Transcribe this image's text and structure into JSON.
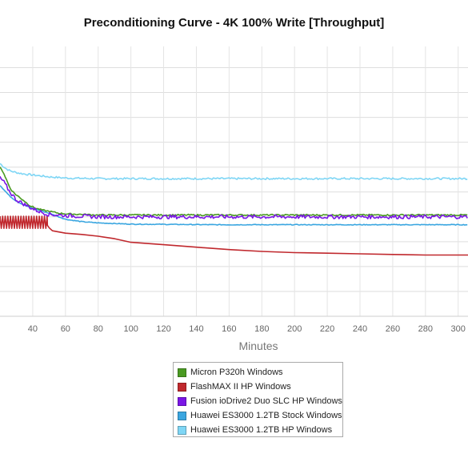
{
  "title": "Preconditioning Curve - 4K 100% Write [Throughput]",
  "chart_data": {
    "type": "line",
    "title": "Preconditioning Curve - 4K 100% Write [Throughput]",
    "xlabel": "Minutes",
    "ylabel": "",
    "xlim": [
      20,
      306
    ],
    "ylim": [
      0,
      445
    ],
    "x_ticks": [
      40,
      60,
      80,
      100,
      120,
      140,
      160,
      180,
      200,
      220,
      240,
      260,
      280,
      300
    ],
    "y_gridlines": [
      41,
      82,
      123,
      164,
      205,
      246,
      287,
      328,
      369,
      410
    ],
    "grid": true,
    "legend_position": "bottom",
    "series": [
      {
        "name": "Micron P320h Windows",
        "color": "#4a9a22",
        "points": [
          [
            20,
            245
          ],
          [
            22,
            238
          ],
          [
            24,
            225
          ],
          [
            26,
            212
          ],
          [
            28,
            205
          ],
          [
            30,
            200
          ],
          [
            34,
            192
          ],
          [
            38,
            183
          ],
          [
            42,
            178
          ],
          [
            46,
            175
          ],
          [
            50,
            173
          ],
          [
            56,
            170
          ],
          [
            60,
            169
          ],
          [
            70,
            168
          ],
          [
            80,
            167
          ],
          [
            100,
            167
          ],
          [
            150,
            167
          ],
          [
            200,
            167
          ],
          [
            250,
            167
          ],
          [
            306,
            167
          ]
        ],
        "noise": 1.2
      },
      {
        "name": "FlashMAX II HP Windows",
        "color": "#c0282d",
        "osc": {
          "from": 20,
          "to": 49,
          "period": 1.6,
          "low": 145,
          "high": 165
        },
        "points": [
          [
            49,
            150
          ],
          [
            50,
            146
          ],
          [
            52,
            141
          ],
          [
            60,
            137
          ],
          [
            70,
            135
          ],
          [
            80,
            132
          ],
          [
            90,
            128
          ],
          [
            100,
            122
          ],
          [
            120,
            118
          ],
          [
            140,
            114
          ],
          [
            160,
            110
          ],
          [
            180,
            107
          ],
          [
            200,
            105
          ],
          [
            220,
            104
          ],
          [
            240,
            103
          ],
          [
            260,
            102
          ],
          [
            280,
            101
          ],
          [
            306,
            101
          ]
        ],
        "noise": 0
      },
      {
        "name": "Fusion ioDrive2 Duo SLC HP Windows",
        "color": "#7a16e6",
        "points": [
          [
            20,
            228
          ],
          [
            22,
            223
          ],
          [
            24,
            214
          ],
          [
            26,
            205
          ],
          [
            28,
            199
          ],
          [
            30,
            192
          ],
          [
            34,
            186
          ],
          [
            38,
            180
          ],
          [
            42,
            175
          ],
          [
            46,
            171
          ],
          [
            50,
            168
          ],
          [
            56,
            167
          ],
          [
            60,
            166
          ],
          [
            80,
            164
          ],
          [
            100,
            164
          ],
          [
            150,
            164
          ],
          [
            200,
            164
          ],
          [
            250,
            164
          ],
          [
            306,
            164
          ]
        ],
        "noise": 3.2
      },
      {
        "name": "Huawei ES3000 1.2TB Stock Windows",
        "color": "#3aa6e0",
        "points": [
          [
            20,
            216
          ],
          [
            22,
            210
          ],
          [
            24,
            204
          ],
          [
            26,
            198
          ],
          [
            30,
            190
          ],
          [
            35,
            183
          ],
          [
            40,
            178
          ],
          [
            45,
            174
          ],
          [
            50,
            170
          ],
          [
            60,
            160
          ],
          [
            70,
            156
          ],
          [
            80,
            154
          ],
          [
            100,
            152
          ],
          [
            150,
            151
          ],
          [
            200,
            151
          ],
          [
            250,
            151
          ],
          [
            306,
            151
          ]
        ],
        "noise": 0.6
      },
      {
        "name": "Huawei ES3000 1.2TB HP Windows",
        "color": "#7fd6f5",
        "points": [
          [
            20,
            252
          ],
          [
            22,
            247
          ],
          [
            24,
            243
          ],
          [
            26,
            240
          ],
          [
            30,
            237
          ],
          [
            34,
            235
          ],
          [
            40,
            233
          ],
          [
            50,
            230
          ],
          [
            60,
            228
          ],
          [
            80,
            227
          ],
          [
            100,
            227
          ],
          [
            150,
            227
          ],
          [
            200,
            227
          ],
          [
            250,
            227
          ],
          [
            306,
            227
          ]
        ],
        "noise": 1.5
      }
    ]
  },
  "legend": {
    "items": [
      {
        "label": "Micron P320h Windows",
        "color": "#4a9a22"
      },
      {
        "label": "FlashMAX II HP Windows",
        "color": "#c0282d"
      },
      {
        "label": "Fusion ioDrive2 Duo SLC HP Windows",
        "color": "#7a16e6"
      },
      {
        "label": "Huawei ES3000 1.2TB Stock Windows",
        "color": "#3aa6e0"
      },
      {
        "label": "Huawei ES3000 1.2TB HP Windows",
        "color": "#7fd6f5"
      }
    ]
  }
}
